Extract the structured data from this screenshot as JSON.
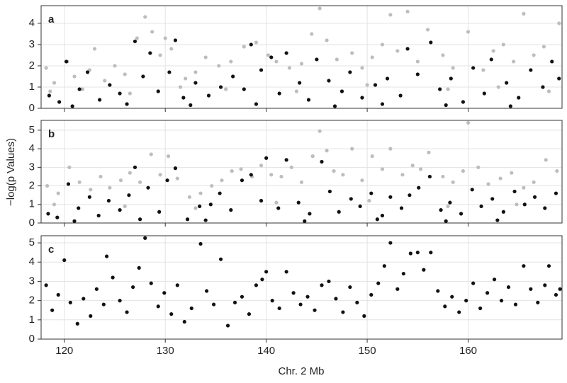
{
  "chart_data": [
    {
      "type": "scatter",
      "panel_label": "a",
      "xlim": [
        117.7,
        169.3
      ],
      "ylim": [
        0,
        4.83
      ],
      "xticks": [
        120,
        130,
        140,
        150,
        160
      ],
      "yticks": [
        0,
        1,
        2,
        3,
        4
      ],
      "grid": true,
      "series": [
        {
          "color": "#bdbdbd",
          "x": [
            118.2,
            119,
            120.3,
            121,
            122.5,
            123,
            124,
            125,
            126,
            127.2,
            128,
            128.7,
            129.5,
            130,
            130.6,
            132,
            133,
            134,
            135.3,
            136.5,
            137.8,
            139,
            140.2,
            141,
            142.3,
            143.5,
            144.5,
            145.3,
            146,
            147,
            148.5,
            149.5,
            150.5,
            151.5,
            152.3,
            153,
            154,
            155,
            156,
            157.5,
            158.5,
            160,
            161.5,
            162.5,
            163.5,
            164.5,
            165.5,
            166.5,
            167.5,
            169,
            118.6,
            121.8,
            126.5,
            131.5,
            136,
            143,
            150,
            158,
            163,
            168
          ],
          "values": [
            1.9,
            1.2,
            2.2,
            1.5,
            1.8,
            2.8,
            1.3,
            2.0,
            1.6,
            3.3,
            4.3,
            3.6,
            2.5,
            3.3,
            2.8,
            1.4,
            1.7,
            2.4,
            2.0,
            2.2,
            2.9,
            3.1,
            2.5,
            2.2,
            1.9,
            2.1,
            3.5,
            4.7,
            3.2,
            2.3,
            2.6,
            1.9,
            2.4,
            3.0,
            4.4,
            2.7,
            4.55,
            2.2,
            3.7,
            2.5,
            1.9,
            3.6,
            1.8,
            2.7,
            3.0,
            2.2,
            4.45,
            2.5,
            2.9,
            4.0,
            0.8,
            0.9,
            0.7,
            1.0,
            0.9,
            0.8,
            1.1,
            0.9,
            1.0,
            0.8
          ]
        },
        {
          "color": "#111111",
          "x": [
            118.5,
            119.5,
            120.2,
            121.5,
            122.3,
            123.5,
            124.5,
            125.5,
            127,
            127.8,
            128.5,
            129.3,
            130.4,
            131,
            131.8,
            133,
            134.3,
            135.5,
            136.7,
            137.8,
            138.5,
            139.5,
            140.5,
            141.3,
            142,
            143.3,
            144.2,
            145,
            146.2,
            147.5,
            148.3,
            149.5,
            150.8,
            152,
            153.3,
            154,
            155,
            156.3,
            157.2,
            158.3,
            159.5,
            160.5,
            161.6,
            162.3,
            163.8,
            165,
            166.2,
            167.4,
            168.3,
            169,
            120.8,
            126.2,
            132.5,
            139,
            146.8,
            151.5,
            157.8,
            164.2
          ],
          "values": [
            0.6,
            0.3,
            2.2,
            0.9,
            1.7,
            0.4,
            1.1,
            0.7,
            3.15,
            1.5,
            2.6,
            0.8,
            1.7,
            3.2,
            0.5,
            1.2,
            0.6,
            1.0,
            1.5,
            0.9,
            3.0,
            1.8,
            2.4,
            0.7,
            2.6,
            1.2,
            0.4,
            2.3,
            1.3,
            0.8,
            1.7,
            0.5,
            1.1,
            1.4,
            0.6,
            2.8,
            1.6,
            3.1,
            0.9,
            1.4,
            0.3,
            1.9,
            0.7,
            2.3,
            1.2,
            0.5,
            1.8,
            1.0,
            2.2,
            1.4,
            0.1,
            0.2,
            0.15,
            0.2,
            0.1,
            0.2,
            0.15,
            0.1
          ]
        }
      ]
    },
    {
      "type": "scatter",
      "panel_label": "b",
      "y_label": "−log(p Values)",
      "xlim": [
        117.7,
        169.3
      ],
      "ylim": [
        0,
        5.53
      ],
      "xticks": [
        120,
        130,
        140,
        150,
        160
      ],
      "yticks": [
        0,
        1,
        2,
        3,
        4,
        5
      ],
      "grid": true,
      "series": [
        {
          "color": "#bdbdbd",
          "x": [
            118.3,
            119.4,
            120.5,
            121.5,
            122.6,
            123.6,
            124.5,
            125.6,
            126.5,
            127.5,
            128.6,
            129.5,
            130.3,
            131.2,
            132.4,
            133.5,
            134.6,
            135.6,
            136.6,
            137.5,
            138.6,
            139.5,
            140.5,
            141.5,
            142.5,
            143.5,
            144.6,
            145.3,
            146,
            146.7,
            147.6,
            148.5,
            149.5,
            150.5,
            151.5,
            152.3,
            153.5,
            154.5,
            155.3,
            156.1,
            157.5,
            158.5,
            159.5,
            160,
            161,
            162,
            163.2,
            164.3,
            165.5,
            166.5,
            167.7,
            168.8,
            119,
            126,
            133,
            141,
            150.2,
            158,
            164.8
          ],
          "values": [
            2.0,
            1.6,
            3.0,
            2.2,
            1.8,
            2.5,
            1.9,
            2.3,
            2.7,
            2.2,
            3.7,
            2.6,
            3.6,
            2.4,
            1.4,
            1.6,
            2.0,
            2.3,
            2.8,
            2.9,
            2.5,
            3.1,
            2.6,
            2.5,
            3.0,
            2.2,
            3.6,
            4.95,
            3.9,
            2.8,
            2.6,
            4.0,
            2.3,
            3.6,
            2.9,
            4.0,
            2.6,
            3.1,
            2.9,
            3.8,
            2.5,
            2.2,
            2.8,
            5.4,
            3.0,
            2.1,
            2.4,
            2.7,
            1.9,
            2.2,
            3.4,
            2.8,
            1.0,
            0.9,
            0.8,
            1.1,
            1.2,
            0.9,
            1.0
          ]
        },
        {
          "color": "#111111",
          "x": [
            118.4,
            119.3,
            120.4,
            121.4,
            122.5,
            123.4,
            124.4,
            125.5,
            126.4,
            127,
            128.3,
            129.4,
            130.2,
            131,
            132.2,
            133.4,
            134.5,
            135.4,
            136.5,
            137.6,
            138.5,
            139.5,
            140,
            141.2,
            142,
            143.2,
            144.3,
            145.5,
            146.3,
            147.2,
            148.4,
            149.3,
            150.4,
            151.5,
            152.3,
            153.4,
            154.2,
            155.1,
            156.2,
            157.3,
            158.2,
            159.3,
            160.4,
            161.3,
            162.4,
            163.5,
            164.6,
            165.6,
            166.6,
            167.6,
            168.7,
            121,
            127.5,
            134,
            143.8,
            151,
            157.8,
            162.9
          ],
          "values": [
            0.5,
            0.3,
            2.1,
            0.8,
            1.4,
            0.4,
            1.2,
            0.7,
            1.5,
            3.0,
            1.9,
            0.6,
            2.3,
            2.95,
            0.2,
            0.9,
            1.0,
            1.6,
            0.7,
            2.3,
            2.6,
            1.2,
            3.5,
            0.8,
            3.4,
            1.1,
            0.5,
            3.3,
            1.7,
            0.6,
            1.3,
            0.9,
            1.6,
            0.4,
            1.4,
            0.8,
            1.5,
            1.9,
            2.5,
            0.7,
            1.1,
            0.5,
            1.8,
            0.9,
            1.3,
            0.6,
            1.7,
            1.0,
            1.4,
            0.8,
            1.6,
            0.1,
            0.2,
            0.15,
            0.1,
            0.2,
            0.1,
            0.15
          ]
        }
      ]
    },
    {
      "type": "scatter",
      "panel_label": "c",
      "x_label": "Chr. 2 Mb",
      "xlim": [
        117.7,
        169.3
      ],
      "ylim": [
        0,
        5.37
      ],
      "xticks": [
        120,
        130,
        140,
        150,
        160
      ],
      "yticks": [
        0,
        1,
        2,
        3,
        4,
        5
      ],
      "grid": true,
      "series": [
        {
          "color": "#111111",
          "x": [
            118.2,
            118.8,
            119.4,
            120,
            120.6,
            121.3,
            121.9,
            122.6,
            123.2,
            123.9,
            124.2,
            124.8,
            125.5,
            126.2,
            126.8,
            127.4,
            128,
            128.6,
            129.3,
            129.9,
            130.6,
            131.2,
            131.9,
            132.6,
            133.5,
            134.1,
            134.8,
            135.5,
            136.2,
            136.9,
            137.6,
            138.3,
            139,
            139.6,
            140,
            140.6,
            141.3,
            142,
            142.7,
            143.4,
            144.1,
            144.8,
            145.5,
            146.2,
            146.9,
            147.6,
            148.3,
            149,
            149.7,
            150.4,
            151.1,
            151.7,
            152.3,
            153,
            153.6,
            154.3,
            155,
            155.6,
            156.3,
            157,
            157.7,
            158.4,
            159.1,
            159.8,
            160.5,
            161.2,
            161.9,
            162.6,
            163.3,
            164,
            164.7,
            165.5,
            166.2,
            166.9,
            167.6,
            168,
            168.7,
            169.1
          ],
          "values": [
            2.8,
            1.5,
            2.3,
            4.1,
            1.9,
            0.8,
            2.1,
            1.2,
            2.6,
            1.8,
            4.3,
            3.2,
            2.0,
            1.4,
            2.7,
            3.7,
            5.25,
            2.9,
            1.7,
            2.4,
            1.3,
            2.8,
            0.9,
            1.6,
            4.95,
            2.5,
            1.8,
            4.15,
            0.7,
            1.9,
            2.2,
            1.3,
            2.8,
            3.1,
            3.5,
            2.0,
            1.6,
            3.5,
            2.4,
            1.8,
            2.2,
            1.5,
            2.8,
            3.0,
            2.1,
            1.4,
            2.7,
            1.9,
            1.2,
            2.3,
            2.9,
            3.8,
            5.0,
            2.6,
            3.4,
            4.45,
            4.5,
            3.6,
            4.5,
            2.5,
            1.7,
            2.2,
            1.4,
            2.0,
            2.9,
            1.6,
            2.4,
            3.1,
            2.0,
            2.7,
            1.8,
            3.8,
            2.6,
            1.9,
            2.8,
            3.8,
            2.3,
            2.6
          ]
        }
      ]
    }
  ]
}
